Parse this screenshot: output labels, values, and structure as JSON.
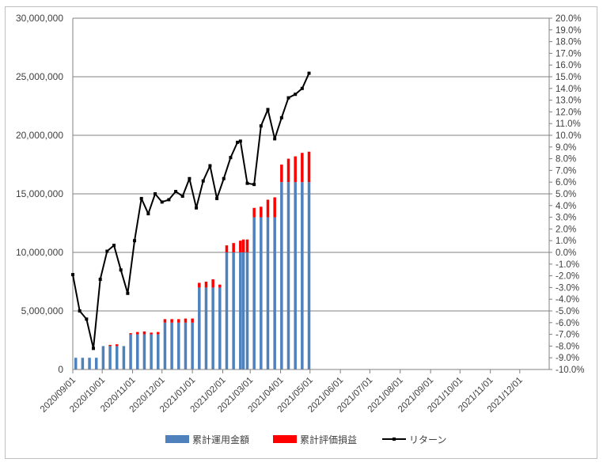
{
  "chart_data": {
    "type": "bar+line",
    "title": "",
    "x_tick_labels": [
      "2020/09/01",
      "2020/10/01",
      "2020/11/01",
      "2020/12/01",
      "2021/01/01",
      "2021/02/01",
      "2021/03/01",
      "2021/04/01",
      "2021/05/01",
      "2021/06/01",
      "2021/07/01",
      "2021/08/01",
      "2021/09/01",
      "2021/10/01",
      "2021/11/01",
      "2021/12/01"
    ],
    "x_range": [
      "2020/09/01",
      "2021/12/31"
    ],
    "y_left": {
      "min": 0,
      "max": 30000000,
      "step": 5000000,
      "tick_labels": [
        "0",
        "5,000,000",
        "10,000,000",
        "15,000,000",
        "20,000,000",
        "25,000,000",
        "30,000,000"
      ]
    },
    "y_right": {
      "min": -10,
      "max": 20,
      "step": 1,
      "tick_labels": [
        "-10.0%",
        "-9.0%",
        "-8.0%",
        "-7.0%",
        "-6.0%",
        "-5.0%",
        "-4.0%",
        "-3.0%",
        "-2.0%",
        "-1.0%",
        "0.0%",
        "1.0%",
        "2.0%",
        "3.0%",
        "4.0%",
        "5.0%",
        "6.0%",
        "7.0%",
        "8.0%",
        "9.0%",
        "10.0%",
        "11.0%",
        "12.0%",
        "13.0%",
        "14.0%",
        "15.0%",
        "16.0%",
        "17.0%",
        "18.0%",
        "19.0%",
        "20.0%"
      ]
    },
    "gridlines": "horizontal",
    "legend_position": "bottom",
    "colors": {
      "invested": "#4f81bd",
      "gain": "#ff0000",
      "return": "#000000",
      "grid": "#808080",
      "axis": "#808080"
    },
    "series": [
      {
        "name": "累計運用金額",
        "type": "stacked-bar",
        "axis": "left",
        "x": [
          "2020/09/04",
          "2020/09/11",
          "2020/09/18",
          "2020/09/25",
          "2020/10/02",
          "2020/10/09",
          "2020/10/16",
          "2020/10/23",
          "2020/10/30",
          "2020/11/06",
          "2020/11/13",
          "2020/11/20",
          "2020/11/27",
          "2020/12/04",
          "2020/12/11",
          "2020/12/18",
          "2020/12/25",
          "2021/01/01",
          "2021/01/08",
          "2021/01/15",
          "2021/01/22",
          "2021/01/29",
          "2021/02/05",
          "2021/02/12",
          "2021/02/19",
          "2021/02/22",
          "2021/02/26",
          "2021/03/05",
          "2021/03/12",
          "2021/03/19",
          "2021/03/26",
          "2021/04/02",
          "2021/04/09",
          "2021/04/16",
          "2021/04/23",
          "2021/04/30"
        ],
        "values": [
          1000000,
          1000000,
          1000000,
          1000000,
          2000000,
          2000000,
          2000000,
          2000000,
          3000000,
          3000000,
          3000000,
          3000000,
          3000000,
          4000000,
          4000000,
          4000000,
          4000000,
          4000000,
          7000000,
          7000000,
          7000000,
          7000000,
          10000000,
          10000000,
          10000000,
          10000000,
          10000000,
          13000000,
          13000000,
          13000000,
          13000000,
          16000000,
          16000000,
          16000000,
          16000000,
          16000000
        ]
      },
      {
        "name": "累計評価損益",
        "type": "stacked-bar",
        "axis": "left",
        "x": [
          "2020/09/04",
          "2020/09/11",
          "2020/09/18",
          "2020/09/25",
          "2020/10/02",
          "2020/10/09",
          "2020/10/16",
          "2020/10/23",
          "2020/10/30",
          "2020/11/06",
          "2020/11/13",
          "2020/11/20",
          "2020/11/27",
          "2020/12/04",
          "2020/12/11",
          "2020/12/18",
          "2020/12/25",
          "2021/01/01",
          "2021/01/08",
          "2021/01/15",
          "2021/01/22",
          "2021/01/29",
          "2021/02/05",
          "2021/02/12",
          "2021/02/19",
          "2021/02/22",
          "2021/02/26",
          "2021/03/05",
          "2021/03/12",
          "2021/03/19",
          "2021/03/26",
          "2021/04/02",
          "2021/04/09",
          "2021/04/16",
          "2021/04/23",
          "2021/04/30"
        ],
        "values": [
          0,
          0,
          0,
          0,
          0,
          100000,
          150000,
          0,
          100000,
          200000,
          250000,
          150000,
          200000,
          300000,
          300000,
          300000,
          350000,
          350000,
          400000,
          500000,
          700000,
          250000,
          600000,
          800000,
          1000000,
          1100000,
          1100000,
          800000,
          900000,
          1500000,
          1700000,
          1500000,
          2000000,
          2200000,
          2500000,
          2600000
        ]
      },
      {
        "name": "リターン",
        "type": "line",
        "axis": "right",
        "x": [
          "2020/09/01",
          "2020/09/08",
          "2020/09/15",
          "2020/09/22",
          "2020/09/29",
          "2020/10/06",
          "2020/10/13",
          "2020/10/20",
          "2020/10/27",
          "2020/11/03",
          "2020/11/10",
          "2020/11/17",
          "2020/11/24",
          "2020/12/01",
          "2020/12/08",
          "2020/12/15",
          "2020/12/22",
          "2020/12/29",
          "2021/01/05",
          "2021/01/12",
          "2021/01/19",
          "2021/01/26",
          "2021/02/02",
          "2021/02/09",
          "2021/02/16",
          "2021/02/19",
          "2021/02/26",
          "2021/03/05",
          "2021/03/12",
          "2021/03/19",
          "2021/03/26",
          "2021/04/02",
          "2021/04/09",
          "2021/04/16",
          "2021/04/23",
          "2021/04/30"
        ],
        "values": [
          -1.9,
          -5.0,
          -5.7,
          -8.2,
          -2.3,
          0.1,
          0.6,
          -1.5,
          -3.5,
          1.0,
          4.6,
          3.3,
          5.0,
          4.3,
          4.5,
          5.2,
          4.8,
          6.3,
          3.8,
          6.1,
          7.4,
          4.6,
          6.3,
          8.1,
          9.4,
          9.5,
          5.9,
          5.8,
          10.8,
          12.2,
          9.7,
          11.5,
          13.2,
          13.5,
          14.0,
          15.3
        ]
      }
    ]
  }
}
